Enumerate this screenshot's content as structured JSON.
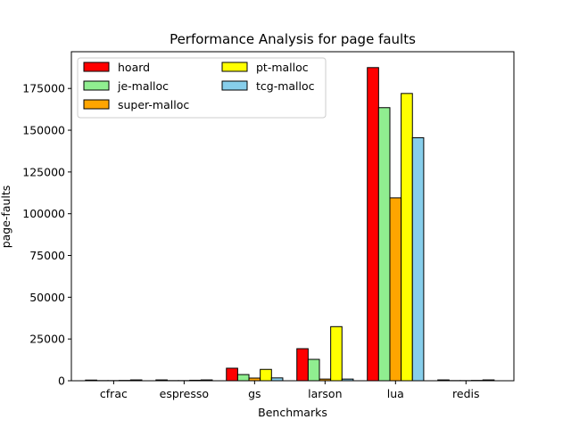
{
  "chart_data": {
    "type": "bar",
    "title": "Performance Analysis for page faults",
    "xlabel": "Benchmarks",
    "ylabel": "page-faults",
    "categories": [
      "cfrac",
      "espresso",
      "gs",
      "larson",
      "lua",
      "redis"
    ],
    "ylim": [
      0,
      197000
    ],
    "yticks": [
      0,
      25000,
      50000,
      75000,
      100000,
      125000,
      150000,
      175000
    ],
    "grid": false,
    "legend_position": "top-left",
    "legend_columns": 2,
    "series": [
      {
        "name": "hoard",
        "color": "#ff0000",
        "values": [
          400,
          500,
          7500,
          19200,
          187500,
          500
        ]
      },
      {
        "name": "je-malloc",
        "color": "#90ee90",
        "values": [
          100,
          100,
          3700,
          12800,
          163500,
          100
        ]
      },
      {
        "name": "super-malloc",
        "color": "#ffa500",
        "values": [
          100,
          100,
          1600,
          1000,
          109500,
          100
        ]
      },
      {
        "name": "pt-malloc",
        "color": "#ffff00",
        "values": [
          200,
          300,
          6800,
          32400,
          172000,
          200
        ]
      },
      {
        "name": "tcg-malloc",
        "color": "#87ceeb",
        "values": [
          500,
          500,
          1700,
          1000,
          145500,
          500
        ]
      }
    ]
  }
}
